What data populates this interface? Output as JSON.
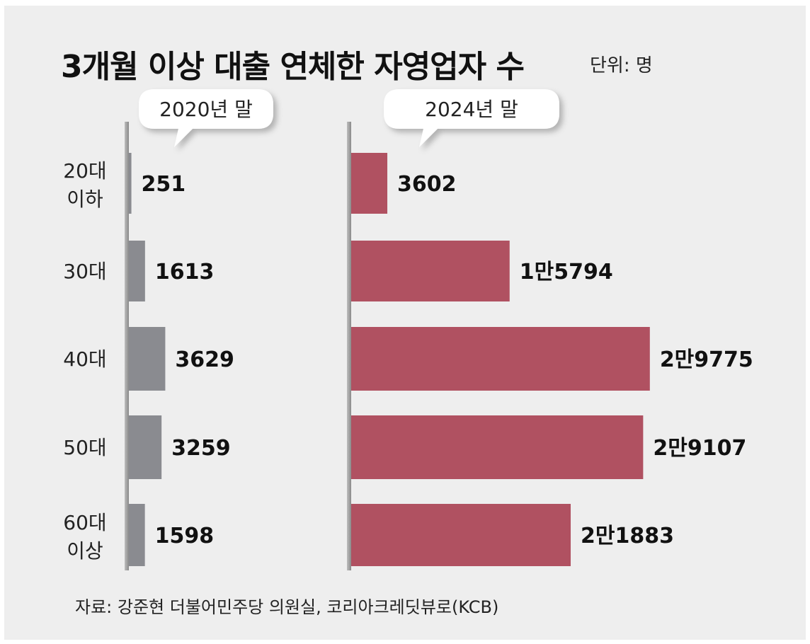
{
  "title": "3개월 이상 대출 연체한 자영업자 수",
  "unit": "단위: 명",
  "source": "자료: 강준현 더불어민주당 의원실, 코리아크레딧뷰로(KCB)",
  "colors": {
    "background": "#eeeeee",
    "bar_2020": "#8a8b90",
    "bar_2024": "#b05161",
    "axis": "#8e8e8e"
  },
  "chart_data": [
    {
      "type": "bar",
      "orientation": "horizontal",
      "label": "2020년 말",
      "categories": [
        [
          "20대",
          "이하"
        ],
        [
          "30대"
        ],
        [
          "40대"
        ],
        [
          "50대"
        ],
        [
          "60대",
          "이상"
        ]
      ],
      "values": [
        251,
        1613,
        3629,
        3259,
        1598
      ],
      "value_labels": [
        "251",
        "1613",
        "3629",
        "3259",
        "1598"
      ],
      "xlim": [
        0,
        30000
      ],
      "grid": false
    },
    {
      "type": "bar",
      "orientation": "horizontal",
      "label": "2024년 말",
      "categories": [
        [
          "20대",
          "이하"
        ],
        [
          "30대"
        ],
        [
          "40대"
        ],
        [
          "50대"
        ],
        [
          "60대",
          "이상"
        ]
      ],
      "values": [
        3602,
        15794,
        29775,
        29107,
        21883
      ],
      "value_labels": [
        "3602",
        "1만5794",
        "2만9775",
        "2만9107",
        "2만1883"
      ],
      "xlim": [
        0,
        30000
      ],
      "grid": false
    }
  ]
}
